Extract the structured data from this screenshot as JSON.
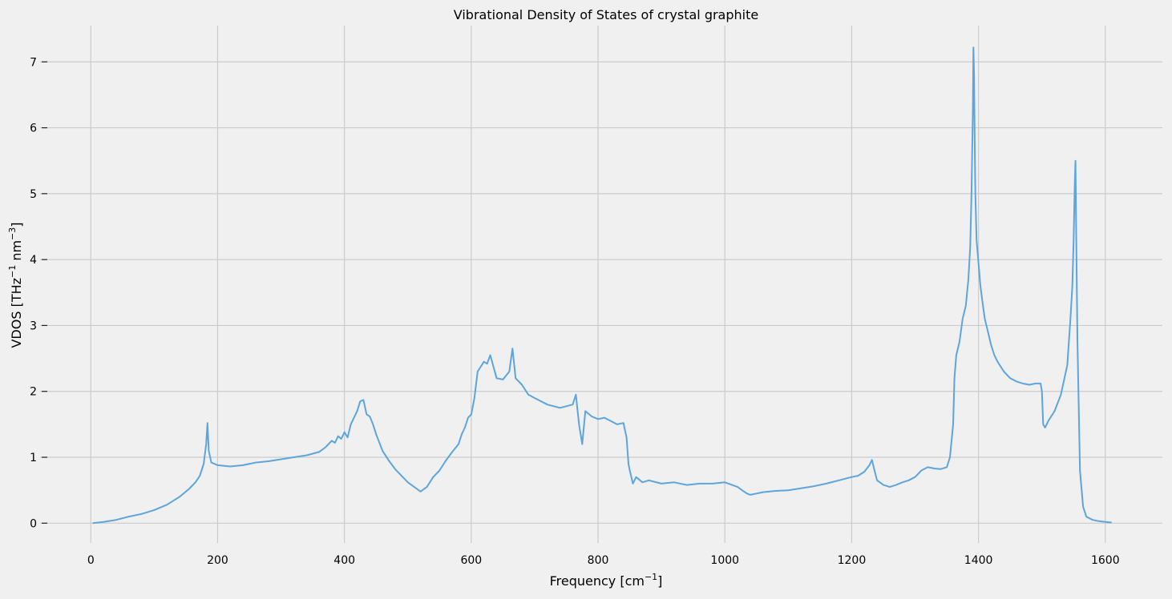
{
  "chart_data": {
    "type": "line",
    "title": "Vibrational Density of States of crystal graphite",
    "xlabel": {
      "base": "Frequency [cm",
      "sup": "−1",
      "tail": "]"
    },
    "ylabel": {
      "p1": "VDOS [THz",
      "sup1": "−1",
      "p2": " nm",
      "sup2": "−3",
      "p3": "]"
    },
    "xlim": [
      -80,
      1690
    ],
    "ylim": [
      -0.3,
      7.55
    ],
    "xticks": [
      0,
      200,
      400,
      600,
      800,
      1000,
      1200,
      1400,
      1600
    ],
    "yticks": [
      0,
      1,
      2,
      3,
      4,
      5,
      6,
      7
    ],
    "grid": true,
    "line_color": "#5da5da",
    "series": [
      {
        "x": [
          3,
          20,
          40,
          60,
          80,
          100,
          120,
          140,
          155,
          165,
          172,
          178,
          182,
          184,
          186,
          190,
          195,
          200,
          220,
          240,
          260,
          280,
          300,
          320,
          340,
          360,
          370,
          380,
          385,
          390,
          395,
          400,
          405,
          410,
          420,
          425,
          430,
          435,
          440,
          445,
          450,
          460,
          470,
          480,
          490,
          500,
          510,
          520,
          530,
          540,
          550,
          560,
          570,
          580,
          585,
          590,
          595,
          600,
          605,
          610,
          620,
          625,
          630,
          640,
          650,
          660,
          665,
          670,
          680,
          690,
          700,
          720,
          740,
          760,
          765,
          770,
          775,
          780,
          790,
          800,
          810,
          820,
          830,
          840,
          845,
          848,
          850,
          855,
          860,
          870,
          880,
          900,
          920,
          940,
          960,
          980,
          1000,
          1020,
          1030,
          1035,
          1040,
          1050,
          1060,
          1080,
          1100,
          1120,
          1140,
          1160,
          1180,
          1200,
          1210,
          1220,
          1228,
          1232,
          1236,
          1240,
          1250,
          1260,
          1270,
          1280,
          1290,
          1300,
          1310,
          1320,
          1330,
          1340,
          1350,
          1355,
          1360,
          1362,
          1365,
          1370,
          1375,
          1380,
          1384,
          1387,
          1389,
          1391,
          1392,
          1393,
          1394,
          1395,
          1397,
          1400,
          1403,
          1407,
          1410,
          1415,
          1420,
          1425,
          1430,
          1440,
          1450,
          1460,
          1470,
          1480,
          1490,
          1498,
          1500,
          1502,
          1505,
          1510,
          1520,
          1530,
          1540,
          1545,
          1548,
          1550,
          1552,
          1553,
          1554,
          1556,
          1560,
          1565,
          1570,
          1580,
          1590,
          1600,
          1610
        ],
        "y": [
          0.0,
          0.02,
          0.05,
          0.1,
          0.14,
          0.2,
          0.28,
          0.4,
          0.52,
          0.62,
          0.72,
          0.9,
          1.2,
          1.52,
          1.1,
          0.92,
          0.9,
          0.88,
          0.86,
          0.88,
          0.92,
          0.94,
          0.97,
          1.0,
          1.03,
          1.08,
          1.15,
          1.25,
          1.22,
          1.32,
          1.28,
          1.38,
          1.3,
          1.5,
          1.7,
          1.85,
          1.87,
          1.65,
          1.62,
          1.5,
          1.35,
          1.1,
          0.95,
          0.82,
          0.72,
          0.62,
          0.55,
          0.48,
          0.55,
          0.7,
          0.8,
          0.95,
          1.08,
          1.2,
          1.35,
          1.45,
          1.6,
          1.65,
          1.9,
          2.3,
          2.45,
          2.42,
          2.55,
          2.2,
          2.18,
          2.3,
          2.65,
          2.2,
          2.1,
          1.95,
          1.9,
          1.8,
          1.75,
          1.8,
          1.95,
          1.5,
          1.2,
          1.7,
          1.62,
          1.58,
          1.6,
          1.55,
          1.5,
          1.52,
          1.3,
          0.9,
          0.8,
          0.6,
          0.7,
          0.62,
          0.65,
          0.6,
          0.62,
          0.58,
          0.6,
          0.6,
          0.62,
          0.55,
          0.48,
          0.45,
          0.43,
          0.45,
          0.47,
          0.49,
          0.5,
          0.53,
          0.56,
          0.6,
          0.65,
          0.7,
          0.72,
          0.78,
          0.88,
          0.96,
          0.8,
          0.65,
          0.58,
          0.55,
          0.58,
          0.62,
          0.65,
          0.7,
          0.8,
          0.85,
          0.83,
          0.82,
          0.85,
          1.0,
          1.5,
          2.2,
          2.55,
          2.75,
          3.1,
          3.3,
          3.7,
          4.2,
          5.0,
          6.2,
          7.22,
          6.8,
          5.8,
          5.0,
          4.3,
          3.95,
          3.6,
          3.3,
          3.1,
          2.9,
          2.7,
          2.55,
          2.45,
          2.3,
          2.2,
          2.15,
          2.12,
          2.1,
          2.12,
          2.12,
          2.0,
          1.5,
          1.45,
          1.55,
          1.7,
          1.95,
          2.4,
          3.1,
          3.6,
          4.3,
          5.2,
          5.5,
          4.5,
          2.8,
          0.8,
          0.25,
          0.1,
          0.05,
          0.03,
          0.02,
          0.01
        ]
      }
    ]
  }
}
